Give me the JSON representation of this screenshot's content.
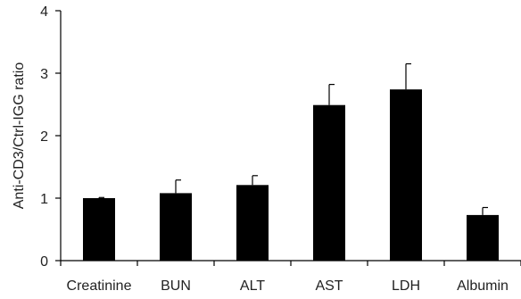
{
  "chart_data": {
    "type": "bar",
    "categories": [
      "Creatinine",
      "BUN",
      "ALT",
      "AST",
      "LDH",
      "Albumin"
    ],
    "values": [
      1.0,
      1.08,
      1.21,
      2.49,
      2.74,
      0.73
    ],
    "error_upper": [
      0.01,
      0.21,
      0.15,
      0.33,
      0.41,
      0.12
    ],
    "xlabel": "",
    "ylabel": "Anti-CD3/Ctrl-IGG ratio",
    "ylim": [
      0,
      4
    ],
    "yticks": [
      "0",
      "1",
      "2",
      "3",
      "4"
    ],
    "grid": false,
    "bar_color": "#000000"
  }
}
